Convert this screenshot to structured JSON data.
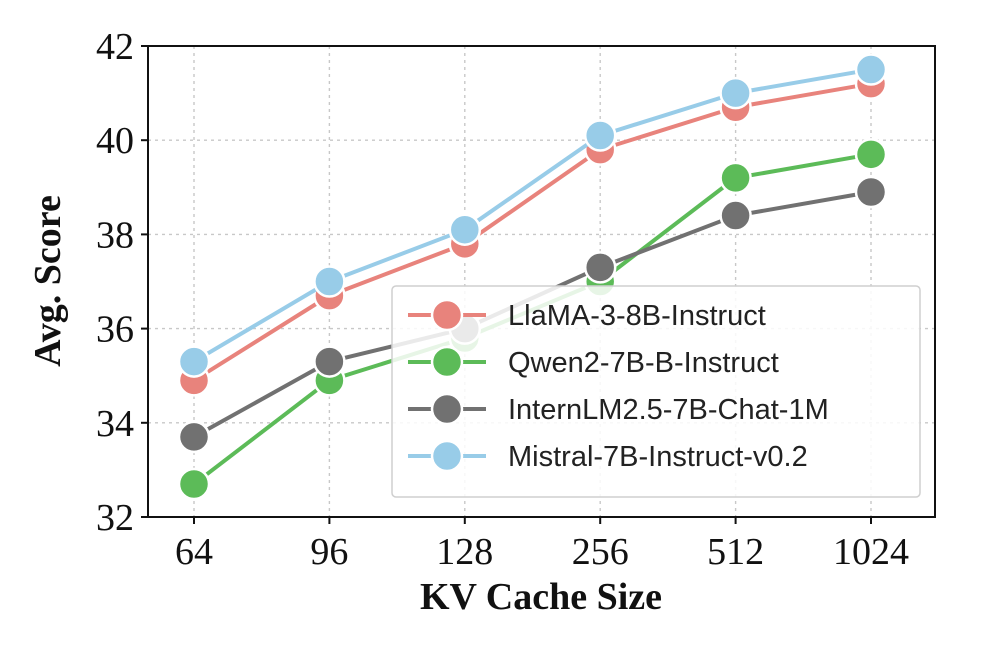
{
  "chart_data": {
    "type": "line",
    "title": "",
    "xlabel": "KV Cache Size",
    "ylabel": "Avg. Score",
    "categories": [
      "64",
      "96",
      "128",
      "256",
      "512",
      "1024"
    ],
    "yticks": [
      32,
      34,
      36,
      38,
      40,
      42
    ],
    "ylim": [
      32,
      42
    ],
    "grid": true,
    "legend_position": "lower-right",
    "series": [
      {
        "name": "LlaMA-3-8B-Instruct",
        "color": "#e8837c",
        "values": [
          34.9,
          36.7,
          37.8,
          39.8,
          40.7,
          41.2
        ]
      },
      {
        "name": "Qwen2-7B-B-Instruct",
        "color": "#5cbb58",
        "values": [
          32.7,
          34.9,
          35.8,
          37.0,
          39.2,
          39.7
        ]
      },
      {
        "name": "InternLM2.5-7B-Chat-1M",
        "color": "#717171",
        "values": [
          33.7,
          35.3,
          36.0,
          37.3,
          38.4,
          38.9
        ]
      },
      {
        "name": "Mistral-7B-Instruct-v0.2",
        "color": "#98cce8",
        "values": [
          35.3,
          37.0,
          38.1,
          40.1,
          41.0,
          41.5
        ]
      }
    ]
  }
}
